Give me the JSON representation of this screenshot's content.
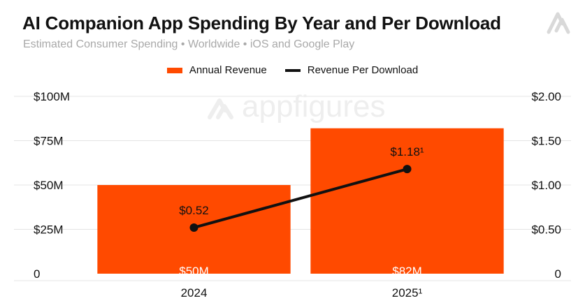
{
  "header": {
    "title": "AI Companion App Spending By Year and Per Download",
    "subtitle": "Estimated Consumer Spending • Worldwide • iOS and Google Play"
  },
  "watermark": "appfigures",
  "colors": {
    "bar": "#ff4a00",
    "line": "#111111",
    "grid": "#e4e4e4"
  },
  "chart_data": {
    "type": "bar",
    "title": "AI Companion App Spending By Year and Per Download",
    "subtitle": "Estimated Consumer Spending • Worldwide • iOS and Google Play",
    "categories": [
      "2024",
      "2025¹"
    ],
    "legend_position": "top-center",
    "grid": true,
    "y_left": {
      "ylim": [
        0,
        100
      ],
      "ticks": [
        "0",
        "$25M",
        "$50M",
        "$75M",
        "$100M"
      ]
    },
    "y_right": {
      "ylim": [
        0,
        2
      ],
      "ticks": [
        "0",
        "$0.50",
        "$1.00",
        "$1.50",
        "$2.00"
      ]
    },
    "series": [
      {
        "name": "Annual Revenue",
        "type": "bar",
        "axis": "left",
        "values": [
          50,
          82
        ],
        "labels": [
          "$50M",
          "$82M"
        ]
      },
      {
        "name": "Revenue Per Download",
        "type": "line",
        "axis": "right",
        "values": [
          0.52,
          1.18
        ],
        "labels": [
          "$0.52",
          "$1.18¹"
        ]
      }
    ]
  }
}
